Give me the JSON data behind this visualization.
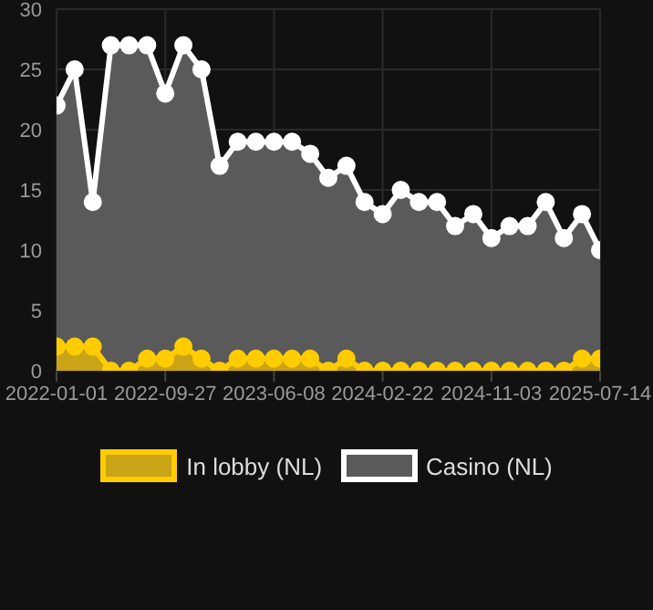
{
  "chart_data": {
    "type": "area",
    "categories": [
      "2022-01-01",
      null,
      null,
      null,
      null,
      null,
      "2022-09-27",
      null,
      null,
      null,
      null,
      null,
      "2023-06-08",
      null,
      null,
      null,
      null,
      null,
      "2024-02-22",
      null,
      null,
      null,
      null,
      null,
      "2024-11-03",
      null,
      null,
      null,
      null,
      null,
      "2025-07-14"
    ],
    "series": [
      {
        "name": "In lobby (NL)",
        "color": "#ffcc00",
        "values": [
          2,
          2,
          2,
          0,
          0,
          1,
          1,
          2,
          1,
          0,
          1,
          1,
          1,
          1,
          1,
          0,
          1,
          0,
          0,
          0,
          0,
          0,
          0,
          0,
          0,
          0,
          0,
          0,
          0,
          1,
          1
        ]
      },
      {
        "name": "Casino (NL)",
        "color": "#ffffff",
        "values": [
          22,
          25,
          14,
          27,
          27,
          27,
          23,
          27,
          25,
          17,
          19,
          19,
          19,
          19,
          18,
          16,
          17,
          14,
          13,
          15,
          14,
          14,
          12,
          13,
          11,
          12,
          12,
          14,
          11,
          13,
          10
        ]
      }
    ],
    "ylim": [
      0,
      30
    ],
    "yticks": [
      0,
      5,
      10,
      15,
      20,
      25,
      30
    ],
    "grid": true,
    "legend": "bottom",
    "marker": "circle"
  }
}
